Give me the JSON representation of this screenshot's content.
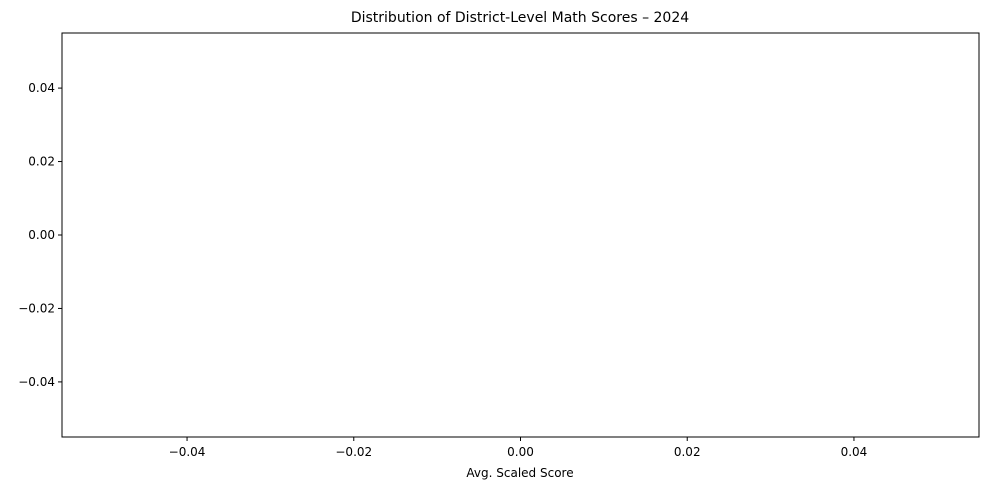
{
  "chart_data": {
    "type": "histogram",
    "title": "Distribution of District-Level Math Scores – 2024",
    "xlabel": "Avg. Scaled Score",
    "ylabel": "",
    "xlim": [
      -0.055,
      0.055
    ],
    "ylim": [
      -0.055,
      0.055
    ],
    "x_ticks": [
      -0.04,
      -0.02,
      0.0,
      0.02,
      0.04
    ],
    "x_tick_labels": [
      "−0.04",
      "−0.02",
      "0.00",
      "0.02",
      "0.04"
    ],
    "y_ticks": [
      0.04,
      0.02,
      0.0,
      -0.02,
      -0.04
    ],
    "y_tick_labels": [
      "0.04",
      "0.02",
      "0.00",
      "−0.02",
      "−0.04"
    ],
    "series": [],
    "grid": false,
    "legend": "none"
  }
}
